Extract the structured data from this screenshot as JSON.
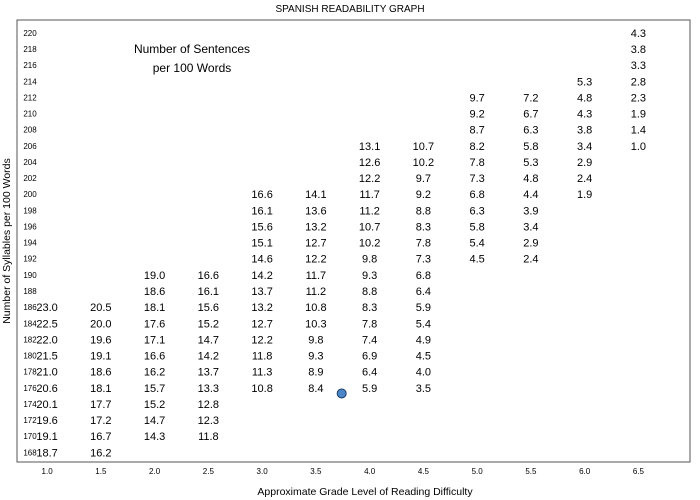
{
  "chart_data": {
    "type": "table",
    "title": "SPANISH READABILITY GRAPH",
    "xlabel": "Approximate Grade Level of Reading Difficulty",
    "ylabel": "Number of Syllables per 100 Words",
    "annotation": "Number of Sentences\nper 100 Words",
    "x_ticks": [
      "1.0",
      "1.5",
      "2.0",
      "2.5",
      "3.0",
      "3.5",
      "4.0",
      "4.5",
      "5.0",
      "5.5",
      "6.0",
      "6.5"
    ],
    "y_ticks": [
      "168",
      "170",
      "172",
      "174",
      "176",
      "178",
      "180",
      "182",
      "184",
      "186",
      "188",
      "190",
      "192",
      "194",
      "196",
      "198",
      "200",
      "202",
      "204",
      "206",
      "208",
      "210",
      "212",
      "214",
      "216",
      "218",
      "220"
    ],
    "xlim": [
      0.72,
      6.98
    ],
    "ylim": [
      166.8,
      221.6
    ],
    "columns": [
      {
        "grade": 1.0,
        "top_syllables": 186,
        "values": [
          "23.0",
          "22.5",
          "22.0",
          "21.5",
          "21.0",
          "20.6",
          "20.1",
          "19.6",
          "19.1",
          "18.7"
        ]
      },
      {
        "grade": 1.5,
        "top_syllables": 186,
        "values": [
          "20.5",
          "20.0",
          "19.6",
          "19.1",
          "18.6",
          "18.1",
          "17.7",
          "17.2",
          "16.7",
          "16.2"
        ]
      },
      {
        "grade": 2.0,
        "top_syllables": 190,
        "values": [
          "19.0",
          "18.6",
          "18.1",
          "17.6",
          "17.1",
          "16.6",
          "16.2",
          "15.7",
          "15.2",
          "14.7",
          "14.3"
        ]
      },
      {
        "grade": 2.5,
        "top_syllables": 190,
        "values": [
          "16.6",
          "16.1",
          "15.6",
          "15.2",
          "14.7",
          "14.2",
          "13.7",
          "13.3",
          "12.8",
          "12.3",
          "11.8"
        ]
      },
      {
        "grade": 3.0,
        "top_syllables": 200,
        "values": [
          "16.6",
          "16.1",
          "15.6",
          "15.1",
          "14.6",
          "14.2",
          "13.7",
          "13.2",
          "12.7",
          "12.2",
          "11.8",
          "11.3",
          "10.8"
        ]
      },
      {
        "grade": 3.5,
        "top_syllables": 200,
        "values": [
          "14.1",
          "13.6",
          "13.2",
          "12.7",
          "12.2",
          "11.7",
          "11.2",
          "10.8",
          "10.3",
          "9.8",
          "9.3",
          "8.9",
          "8.4"
        ]
      },
      {
        "grade": 4.0,
        "top_syllables": 206,
        "values": [
          "13.1",
          "12.6",
          "12.2",
          "11.7",
          "11.2",
          "10.7",
          "10.2",
          "9.8",
          "9.3",
          "8.8",
          "8.3",
          "7.8",
          "7.4",
          "6.9",
          "6.4",
          "5.9"
        ]
      },
      {
        "grade": 4.5,
        "top_syllables": 206,
        "values": [
          "10.7",
          "10.2",
          "9.7",
          "9.2",
          "8.8",
          "8.3",
          "7.8",
          "7.3",
          "6.8",
          "6.4",
          "5.9",
          "5.4",
          "4.9",
          "4.5",
          "4.0",
          "3.5"
        ]
      },
      {
        "grade": 5.0,
        "top_syllables": 212,
        "values": [
          "9.7",
          "9.2",
          "8.7",
          "8.2",
          "7.8",
          "7.3",
          "6.8",
          "6.3",
          "5.8",
          "5.4",
          "4.5"
        ]
      },
      {
        "grade": 5.5,
        "top_syllables": 212,
        "values": [
          "7.2",
          "6.7",
          "6.3",
          "5.8",
          "5.3",
          "4.8",
          "4.4",
          "3.9",
          "3.4",
          "2.9",
          "2.4"
        ]
      },
      {
        "grade": 6.0,
        "top_syllables": 214,
        "values": [
          "5.3",
          "4.8",
          "4.3",
          "3.8",
          "3.4",
          "2.9",
          "2.4",
          "1.9"
        ]
      },
      {
        "grade": 6.5,
        "top_syllables": 220,
        "values": [
          "4.3",
          "3.8",
          "3.3",
          "2.8",
          "2.3",
          "1.9",
          "1.4",
          "1.0"
        ]
      }
    ],
    "marker": {
      "x": 3.74,
      "y": 175.3,
      "color": "#4a86c8",
      "edge_color": "#1f3f66"
    },
    "grid": false,
    "colors": {
      "frame": "#555555",
      "text": "#111111"
    }
  }
}
